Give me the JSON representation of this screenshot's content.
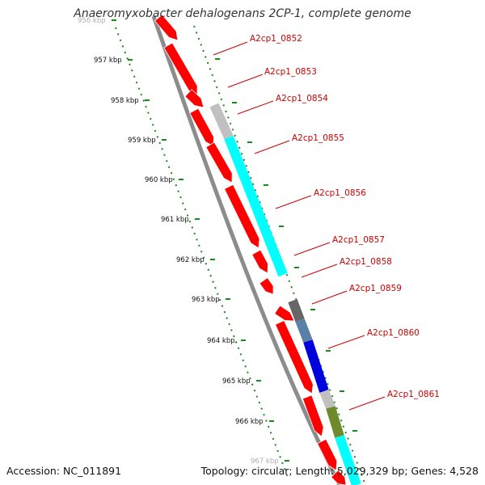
{
  "title": "Anaeromyxobacter dehalogenans 2CP-1, complete genome",
  "footer": {
    "accession": "Accession: NC_011891",
    "stats": "Topology: circular; Length: 5,029,329 bp; Genes: 4,528"
  },
  "scale": {
    "labels": [
      "956 kbp",
      "957 kbp",
      "958 kbp",
      "959 kbp",
      "960 kbp",
      "961 kbp",
      "962 kbp",
      "963 kbp",
      "964 kbp",
      "965 kbp",
      "966 kbp",
      "967 kbp"
    ]
  },
  "genes": [
    {
      "name": "A2cp1_0852"
    },
    {
      "name": "A2cp1_0853"
    },
    {
      "name": "A2cp1_0854"
    },
    {
      "name": "A2cp1_0855"
    },
    {
      "name": "A2cp1_0856"
    },
    {
      "name": "A2cp1_0857"
    },
    {
      "name": "A2cp1_0858"
    },
    {
      "name": "A2cp1_0859"
    },
    {
      "name": "A2cp1_0860"
    },
    {
      "name": "A2cp1_0861"
    }
  ],
  "colors": {
    "cds": "#ff0000",
    "backbone": "#8c8c8c",
    "tick": "#1a8a1a",
    "label": "#cc0000",
    "cyan": "#00ffff",
    "lightgray": "#c0c0c0",
    "darkgray": "#666666",
    "blue": "#0000dd",
    "steel": "#5a80a8",
    "olive": "#6e8a2a"
  }
}
